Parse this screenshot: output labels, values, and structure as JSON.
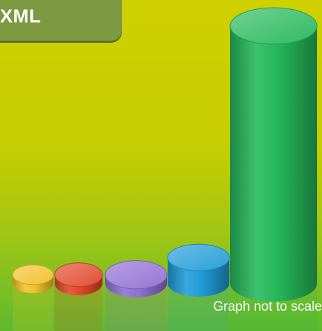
{
  "chart_data": {
    "type": "bar",
    "style": "3d-cylinder",
    "title": "XML",
    "categories": [
      "",
      "",
      "",
      "",
      ""
    ],
    "values": [
      1,
      1,
      1,
      3,
      30
    ],
    "colors": [
      "#f2c02a",
      "#e0462a",
      "#8f6fd1",
      "#1f9bd6",
      "#25b75a"
    ],
    "footnote": "Graph not to scale",
    "grid": false,
    "legend": "none"
  }
}
